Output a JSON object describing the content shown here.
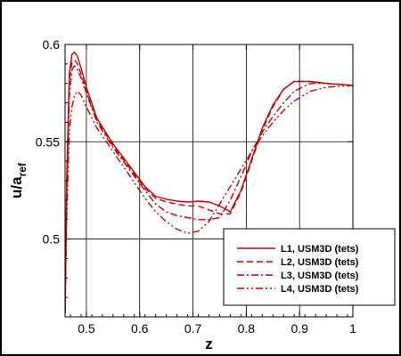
{
  "chart_data": {
    "type": "line",
    "xlabel": "z",
    "ylabel_main": "u/a",
    "ylabel_sub": "ref",
    "xlim": [
      0.46,
      1.0
    ],
    "ylim": [
      0.46,
      0.6
    ],
    "xticks": [
      0.5,
      0.6,
      0.7,
      0.8,
      0.9,
      1
    ],
    "xtick_labels": [
      "0.5",
      "0.6",
      "0.7",
      "0.8",
      "0.9",
      "1"
    ],
    "yticks": [
      0.5,
      0.55,
      0.6
    ],
    "ytick_labels": [
      "0.5",
      "0.55",
      "0.6"
    ],
    "grid": true,
    "legend_position": "bottom-right",
    "line_color": "#cc0000",
    "series": [
      {
        "name": "L1, USM3D (tets)",
        "dash": "solid",
        "x": [
          0.46,
          0.463,
          0.468,
          0.473,
          0.478,
          0.483,
          0.49,
          0.5,
          0.52,
          0.55,
          0.58,
          0.61,
          0.63,
          0.65,
          0.67,
          0.69,
          0.71,
          0.73,
          0.75,
          0.77,
          0.79,
          0.81,
          0.83,
          0.85,
          0.87,
          0.89,
          0.92,
          0.95,
          1.0
        ],
        "y": [
          0.462,
          0.53,
          0.585,
          0.595,
          0.596,
          0.594,
          0.588,
          0.578,
          0.562,
          0.549,
          0.538,
          0.527,
          0.522,
          0.5205,
          0.5195,
          0.519,
          0.5195,
          0.519,
          0.517,
          0.514,
          0.525,
          0.541,
          0.557,
          0.569,
          0.577,
          0.581,
          0.581,
          0.58,
          0.579
        ]
      },
      {
        "name": "L2, USM3D (tets)",
        "dash": "7,4",
        "x": [
          0.46,
          0.463,
          0.468,
          0.473,
          0.478,
          0.483,
          0.49,
          0.5,
          0.52,
          0.55,
          0.58,
          0.61,
          0.63,
          0.65,
          0.67,
          0.69,
          0.71,
          0.73,
          0.75,
          0.77,
          0.79,
          0.81,
          0.83,
          0.85,
          0.87,
          0.89,
          0.92,
          0.95,
          1.0
        ],
        "y": [
          0.462,
          0.528,
          0.582,
          0.591,
          0.592,
          0.59,
          0.585,
          0.576,
          0.561,
          0.548,
          0.537,
          0.526,
          0.521,
          0.519,
          0.518,
          0.517,
          0.517,
          0.515,
          0.513,
          0.513,
          0.524,
          0.54,
          0.556,
          0.568,
          0.577,
          0.581,
          0.581,
          0.58,
          0.579
        ]
      },
      {
        "name": "L3, USM3D (tets)",
        "dash": "8,3,2,3",
        "x": [
          0.46,
          0.463,
          0.468,
          0.473,
          0.478,
          0.483,
          0.49,
          0.5,
          0.52,
          0.55,
          0.58,
          0.61,
          0.63,
          0.65,
          0.67,
          0.69,
          0.71,
          0.73,
          0.75,
          0.77,
          0.79,
          0.81,
          0.83,
          0.85,
          0.87,
          0.89,
          0.92,
          0.95,
          1.0
        ],
        "y": [
          0.462,
          0.52,
          0.573,
          0.587,
          0.589,
          0.587,
          0.583,
          0.575,
          0.56,
          0.547,
          0.536,
          0.525,
          0.518,
          0.514,
          0.512,
          0.511,
          0.51,
          0.51,
          0.511,
          0.52,
          0.532,
          0.545,
          0.555,
          0.563,
          0.57,
          0.576,
          0.58,
          0.58,
          0.579
        ]
      },
      {
        "name": "L4, USM3D (tets)",
        "dash": "8,3,2,3,2,3",
        "x": [
          0.46,
          0.463,
          0.468,
          0.473,
          0.478,
          0.483,
          0.49,
          0.5,
          0.52,
          0.55,
          0.58,
          0.61,
          0.63,
          0.65,
          0.67,
          0.69,
          0.71,
          0.73,
          0.75,
          0.77,
          0.79,
          0.81,
          0.83,
          0.85,
          0.87,
          0.89,
          0.92,
          0.95,
          1.0
        ],
        "y": [
          0.462,
          0.51,
          0.555,
          0.568,
          0.574,
          0.576,
          0.574,
          0.568,
          0.557,
          0.545,
          0.533,
          0.521,
          0.514,
          0.509,
          0.505,
          0.503,
          0.504,
          0.509,
          0.518,
          0.527,
          0.536,
          0.545,
          0.553,
          0.56,
          0.566,
          0.571,
          0.576,
          0.578,
          0.579
        ]
      }
    ]
  }
}
